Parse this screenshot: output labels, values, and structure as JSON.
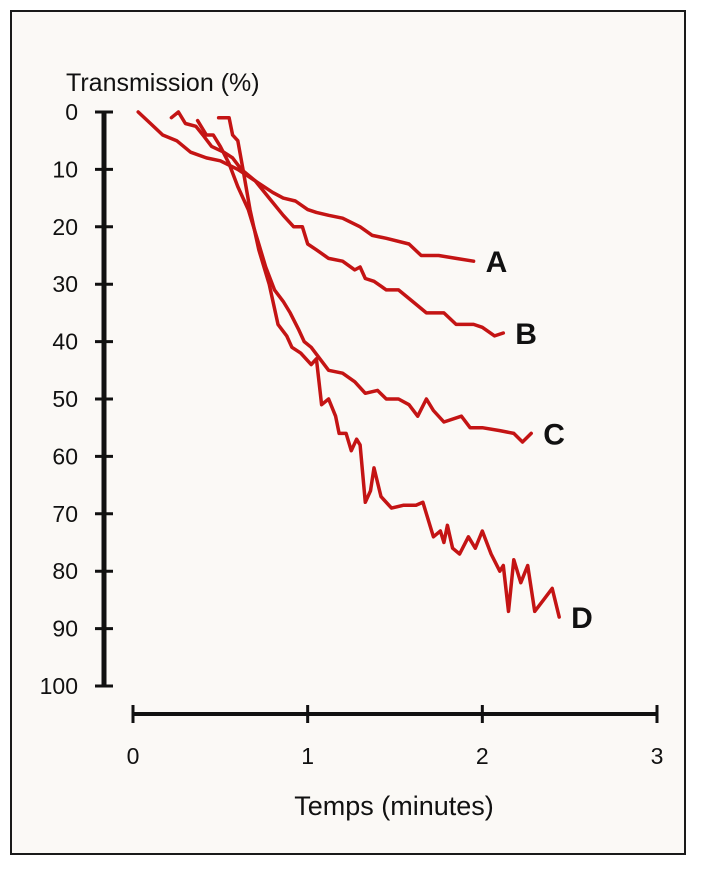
{
  "colors": {
    "series": "#c41414",
    "axis": "#111111",
    "background": "#fbf9f6"
  },
  "chart_data": {
    "type": "line",
    "ylabel": "Transmission (%)",
    "xlabel": "Temps (minutes)",
    "xlim": [
      0,
      3
    ],
    "ylim": [
      0,
      100
    ],
    "y_inverted": true,
    "grid": false,
    "legend": "none",
    "xticks": [
      0,
      1,
      2,
      3
    ],
    "yticks": [
      0,
      10,
      20,
      30,
      40,
      50,
      60,
      70,
      80,
      90,
      100
    ],
    "series": [
      {
        "name": "A",
        "points": [
          [
            0.03,
            0
          ],
          [
            0.1,
            2
          ],
          [
            0.17,
            4
          ],
          [
            0.25,
            5
          ],
          [
            0.33,
            7
          ],
          [
            0.42,
            8
          ],
          [
            0.5,
            8.5
          ],
          [
            0.6,
            10
          ],
          [
            0.7,
            12
          ],
          [
            0.8,
            14
          ],
          [
            0.86,
            15
          ],
          [
            0.93,
            15.5
          ],
          [
            1.0,
            17
          ],
          [
            1.05,
            17.5
          ],
          [
            1.12,
            18
          ],
          [
            1.2,
            18.5
          ],
          [
            1.3,
            20
          ],
          [
            1.37,
            21.5
          ],
          [
            1.45,
            22
          ],
          [
            1.58,
            23
          ],
          [
            1.65,
            25
          ],
          [
            1.75,
            25
          ],
          [
            1.85,
            25.5
          ],
          [
            1.95,
            26
          ]
        ]
      },
      {
        "name": "B",
        "points": [
          [
            0.22,
            1
          ],
          [
            0.26,
            0
          ],
          [
            0.3,
            2
          ],
          [
            0.36,
            2.5
          ],
          [
            0.4,
            4
          ],
          [
            0.45,
            6
          ],
          [
            0.52,
            7
          ],
          [
            0.57,
            8
          ],
          [
            0.62,
            10
          ],
          [
            0.7,
            12
          ],
          [
            0.78,
            15
          ],
          [
            0.86,
            18
          ],
          [
            0.92,
            20
          ],
          [
            0.97,
            20
          ],
          [
            1.0,
            23
          ],
          [
            1.05,
            24
          ],
          [
            1.12,
            25.5
          ],
          [
            1.2,
            26
          ],
          [
            1.27,
            27.5
          ],
          [
            1.3,
            27
          ],
          [
            1.33,
            29
          ],
          [
            1.38,
            29.5
          ],
          [
            1.45,
            31
          ],
          [
            1.52,
            31
          ],
          [
            1.6,
            33
          ],
          [
            1.68,
            35
          ],
          [
            1.78,
            35
          ],
          [
            1.85,
            37
          ],
          [
            1.95,
            37
          ],
          [
            2.0,
            37.5
          ],
          [
            2.07,
            39
          ],
          [
            2.12,
            38.5
          ]
        ]
      },
      {
        "name": "C",
        "points": [
          [
            0.37,
            1.5
          ],
          [
            0.42,
            4
          ],
          [
            0.46,
            4
          ],
          [
            0.5,
            6
          ],
          [
            0.55,
            9
          ],
          [
            0.6,
            13
          ],
          [
            0.66,
            17
          ],
          [
            0.72,
            23
          ],
          [
            0.76,
            27
          ],
          [
            0.81,
            31
          ],
          [
            0.86,
            33
          ],
          [
            0.9,
            35
          ],
          [
            0.95,
            38
          ],
          [
            0.98,
            40
          ],
          [
            1.02,
            41
          ],
          [
            1.07,
            43
          ],
          [
            1.12,
            45
          ],
          [
            1.2,
            45.5
          ],
          [
            1.27,
            47
          ],
          [
            1.33,
            49
          ],
          [
            1.4,
            48.5
          ],
          [
            1.45,
            50
          ],
          [
            1.52,
            50
          ],
          [
            1.58,
            51
          ],
          [
            1.63,
            53
          ],
          [
            1.68,
            50
          ],
          [
            1.72,
            52
          ],
          [
            1.78,
            54
          ],
          [
            1.88,
            53
          ],
          [
            1.93,
            55
          ],
          [
            2.0,
            55
          ],
          [
            2.1,
            55.5
          ],
          [
            2.18,
            56
          ],
          [
            2.23,
            57.5
          ],
          [
            2.28,
            56
          ]
        ]
      },
      {
        "name": "D",
        "points": [
          [
            0.49,
            1
          ],
          [
            0.55,
            1
          ],
          [
            0.57,
            4
          ],
          [
            0.6,
            5
          ],
          [
            0.63,
            10
          ],
          [
            0.67,
            17
          ],
          [
            0.72,
            24
          ],
          [
            0.78,
            30
          ],
          [
            0.83,
            37
          ],
          [
            0.88,
            39
          ],
          [
            0.91,
            41
          ],
          [
            0.96,
            42
          ],
          [
            1.02,
            44
          ],
          [
            1.05,
            43
          ],
          [
            1.08,
            51
          ],
          [
            1.12,
            50
          ],
          [
            1.16,
            53
          ],
          [
            1.18,
            56
          ],
          [
            1.22,
            56
          ],
          [
            1.25,
            59
          ],
          [
            1.28,
            57
          ],
          [
            1.3,
            58
          ],
          [
            1.33,
            68
          ],
          [
            1.36,
            66
          ],
          [
            1.38,
            62
          ],
          [
            1.42,
            67
          ],
          [
            1.48,
            69
          ],
          [
            1.55,
            68.5
          ],
          [
            1.62,
            68.5
          ],
          [
            1.66,
            68
          ],
          [
            1.72,
            74
          ],
          [
            1.76,
            73
          ],
          [
            1.78,
            75
          ],
          [
            1.8,
            72
          ],
          [
            1.83,
            76
          ],
          [
            1.87,
            77
          ],
          [
            1.92,
            74
          ],
          [
            1.96,
            76
          ],
          [
            2.0,
            73
          ],
          [
            2.05,
            77
          ],
          [
            2.1,
            80
          ],
          [
            2.12,
            79
          ],
          [
            2.15,
            87
          ],
          [
            2.18,
            78
          ],
          [
            2.22,
            82
          ],
          [
            2.26,
            79
          ],
          [
            2.3,
            87
          ],
          [
            2.35,
            85
          ],
          [
            2.4,
            83
          ],
          [
            2.44,
            88
          ]
        ]
      }
    ]
  }
}
